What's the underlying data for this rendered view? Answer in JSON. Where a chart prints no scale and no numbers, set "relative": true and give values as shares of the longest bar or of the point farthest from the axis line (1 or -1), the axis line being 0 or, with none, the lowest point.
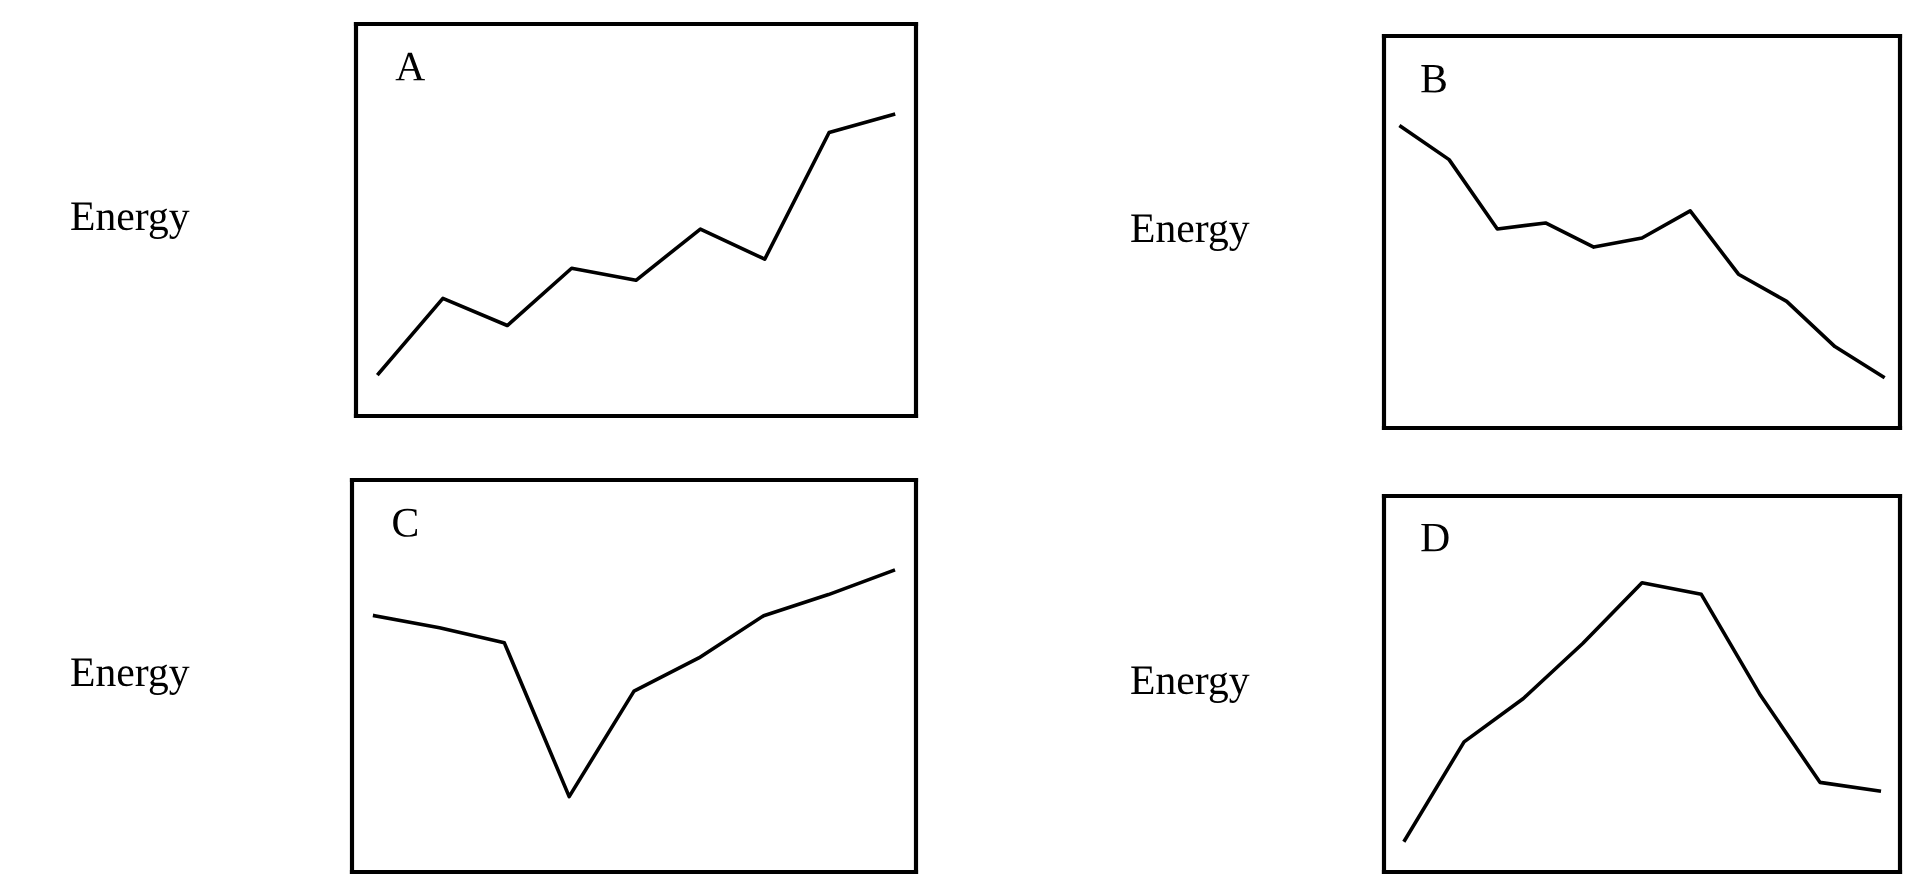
{
  "chart_data": [
    {
      "type": "line",
      "title": "A",
      "ylabel": "Energy",
      "relative": true,
      "categories": [
        null,
        null,
        null,
        null,
        null,
        null,
        null,
        null,
        null
      ],
      "series": [
        {
          "color": "#000000",
          "values": [
            0.14,
            0.39,
            0.3,
            0.49,
            0.45,
            0.62,
            0.52,
            0.94,
            1
          ]
        }
      ]
    },
    {
      "type": "line",
      "title": "B",
      "ylabel": "Energy",
      "relative": true,
      "categories": [
        null,
        null,
        null,
        null,
        null,
        null,
        null,
        null,
        null,
        null,
        null
      ],
      "series": [
        {
          "color": "#000000",
          "values": [
            1,
            0.89,
            0.66,
            0.68,
            0.6,
            0.63,
            0.72,
            0.51,
            0.42,
            0.27,
            0.17
          ]
        }
      ]
    },
    {
      "type": "line",
      "title": "C",
      "ylabel": "Energy",
      "relative": true,
      "categories": [
        null,
        null,
        null,
        null,
        null,
        null,
        null,
        null,
        null
      ],
      "series": [
        {
          "color": "#000000",
          "values": [
            0.85,
            0.81,
            0.76,
            0.25,
            0.6,
            0.71,
            0.85,
            0.92,
            1
          ]
        }
      ]
    },
    {
      "type": "line",
      "title": "D",
      "ylabel": "Energy",
      "relative": true,
      "categories": [
        null,
        null,
        null,
        null,
        null,
        null,
        null,
        null,
        null
      ],
      "series": [
        {
          "color": "#000000",
          "values": [
            0.11,
            0.45,
            0.6,
            0.79,
            1,
            0.96,
            0.61,
            0.31,
            0.28
          ]
        }
      ]
    }
  ]
}
